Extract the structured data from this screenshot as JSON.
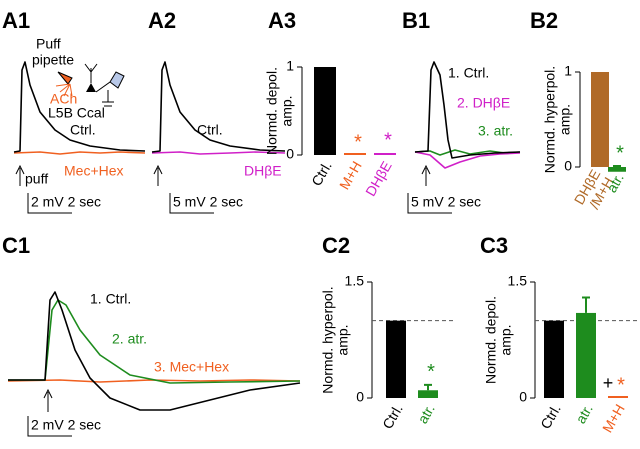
{
  "panels": {
    "labels": [
      "A1",
      "A2",
      "A3",
      "B1",
      "B2",
      "C1",
      "C2",
      "C3"
    ],
    "A1": {
      "inset": [
        "Puff",
        "pipette",
        "ACh",
        "L5B Ccal"
      ],
      "traces": [
        "Ctrl.",
        "Mec+Hex"
      ],
      "stimulus": "puff",
      "scale": "2 mV 2 sec"
    },
    "A2": {
      "traces": [
        "Ctrl.",
        "DHβE"
      ],
      "scale": "5 mV 2 sec"
    },
    "B1": {
      "traces": [
        "1. Ctrl.",
        "2. DHβE",
        "3. atr."
      ],
      "scale": "5 mV 2 sec"
    },
    "C1": {
      "traces": [
        "1. Ctrl.",
        "2. atr.",
        "3. Mec+Hex"
      ],
      "scale": "2 mV 2 sec"
    }
  },
  "chart_data": [
    {
      "type": "bar",
      "ylabel": [
        "Normd. depol.",
        "amp."
      ],
      "categories": [
        "Ctrl.",
        "M+H",
        "DHβE"
      ],
      "values": [
        1,
        0,
        0.02
      ],
      "colors": [
        "#000000",
        "#f06020",
        "#d020c8"
      ],
      "significance": [
        null,
        "*",
        "*"
      ],
      "ylim": [
        0,
        1
      ],
      "yticks": [
        0,
        1
      ]
    },
    {
      "type": "bar",
      "ylabel": [
        "Normd. hyperpol.",
        "amp."
      ],
      "categories": [
        [
          "DHβE",
          "/M+H"
        ],
        "atr."
      ],
      "values": [
        1,
        -0.05
      ],
      "errors": [
        0,
        0.06
      ],
      "colors": [
        "#b06a28",
        "#1e8c1e"
      ],
      "significance": [
        null,
        "*"
      ],
      "ylim": [
        0,
        1
      ],
      "yticks": [
        0,
        1
      ]
    },
    {
      "type": "bar",
      "ylabel": [
        "Normd. hyperpol.",
        "amp."
      ],
      "categories": [
        "Ctrl.",
        "atr."
      ],
      "values": [
        1,
        0.1
      ],
      "errors": [
        0,
        0.07
      ],
      "colors": [
        "#000000",
        "#1e8c1e"
      ],
      "significance": [
        null,
        "*"
      ],
      "reference_line": 1,
      "ylim": [
        0,
        1.5
      ],
      "yticks": [
        0,
        1.5
      ]
    },
    {
      "type": "bar",
      "ylabel": [
        "Normd. depol.",
        "amp."
      ],
      "categories": [
        "Ctrl.",
        "atr.",
        "M+H"
      ],
      "values": [
        1,
        1.1,
        0
      ],
      "errors": [
        0,
        0.2,
        0
      ],
      "colors": [
        "#000000",
        "#1e8c1e",
        "#f06020"
      ],
      "significance": [
        null,
        null,
        "*"
      ],
      "annotations": [
        null,
        null,
        "+"
      ],
      "reference_line": 1,
      "ylim": [
        0,
        1.5
      ],
      "yticks": [
        0,
        1.5
      ]
    }
  ]
}
